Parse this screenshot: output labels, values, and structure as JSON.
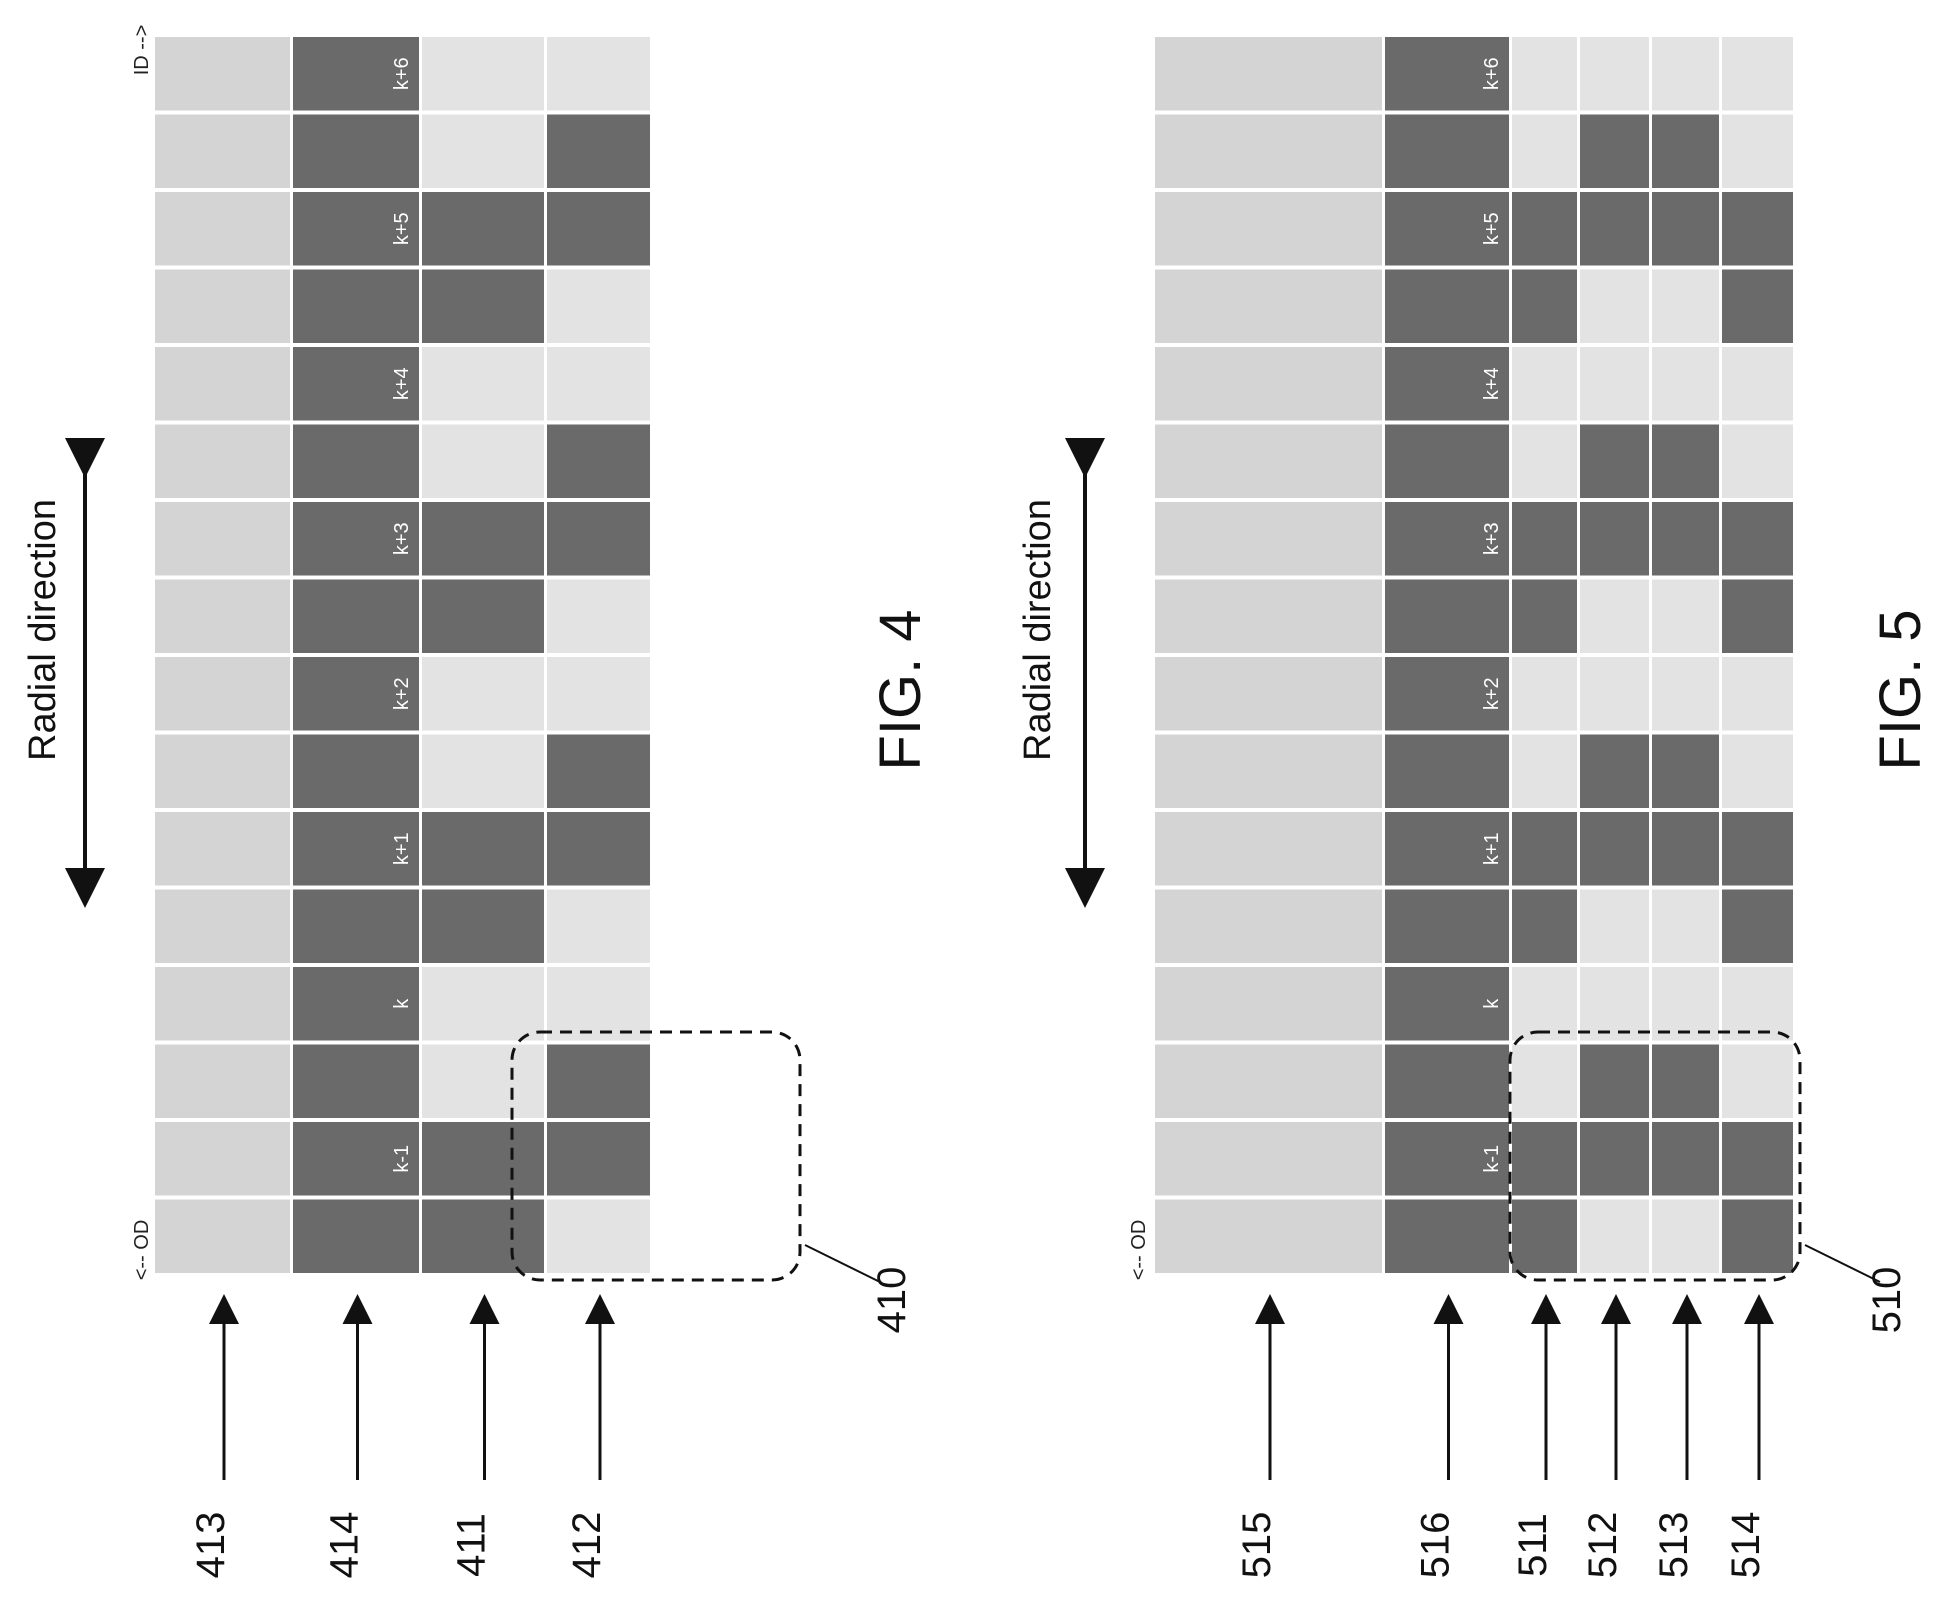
{
  "colors": {
    "dark": "#6a6a6a",
    "light": "#d4d4d4",
    "lighter": "#e3e3e3",
    "line": "#111111"
  },
  "figures": [
    {
      "id": "fig4",
      "caption": "FIG. 4",
      "direction_label": "Radial direction",
      "od_label": "<-- OD",
      "id_label": "ID -->",
      "group_label": "410",
      "rows": [
        {
          "label": "413",
          "pattern": [
            0,
            0,
            0,
            0,
            0,
            0,
            0,
            0,
            0,
            0,
            0,
            0,
            0,
            0,
            0,
            0
          ]
        },
        {
          "label": "414",
          "pattern": [
            1,
            1,
            1,
            1,
            1,
            1,
            1,
            1,
            1,
            1,
            1,
            1,
            1,
            1,
            1,
            1
          ]
        },
        {
          "label": "411",
          "pattern": [
            1,
            1,
            0,
            0,
            1,
            1,
            0,
            0,
            1,
            1,
            0,
            0,
            1,
            1,
            0,
            0
          ]
        },
        {
          "label": "412",
          "pattern": [
            0,
            1,
            1,
            0,
            0,
            1,
            1,
            0,
            0,
            1,
            1,
            0,
            0,
            1,
            1,
            0
          ]
        }
      ],
      "track_labels": [
        "k-1",
        "k",
        "k+1",
        "k+2",
        "k+3",
        "k+4",
        "k+5",
        "k+6"
      ]
    },
    {
      "id": "fig5",
      "caption": "FIG. 5",
      "direction_label": "Radial direction",
      "od_label": "<-- OD",
      "id_label": "",
      "group_label": "510",
      "rows": [
        {
          "label": "515",
          "pattern": [
            0,
            0,
            0,
            0,
            0,
            0,
            0,
            0,
            0,
            0,
            0,
            0,
            0,
            0,
            0,
            0
          ]
        },
        {
          "label": "516",
          "pattern": [
            1,
            1,
            1,
            1,
            1,
            1,
            1,
            1,
            1,
            1,
            1,
            1,
            1,
            1,
            1,
            1
          ]
        },
        {
          "label": "511",
          "pattern": [
            1,
            1,
            0,
            0,
            1,
            1,
            0,
            0,
            1,
            1,
            0,
            0,
            1,
            1,
            0,
            0
          ]
        },
        {
          "label": "512",
          "pattern": [
            0,
            1,
            1,
            0,
            0,
            1,
            1,
            0,
            0,
            1,
            1,
            0,
            0,
            1,
            1,
            0
          ]
        },
        {
          "label": "513",
          "pattern": [
            0,
            1,
            1,
            0,
            0,
            1,
            1,
            0,
            0,
            1,
            1,
            0,
            0,
            1,
            1,
            0
          ]
        },
        {
          "label": "514",
          "pattern": [
            1,
            1,
            0,
            0,
            1,
            1,
            0,
            0,
            1,
            1,
            0,
            0,
            1,
            1,
            0,
            0
          ]
        }
      ],
      "track_labels": [
        "k-1",
        "k",
        "k+1",
        "k+2",
        "k+3",
        "k+4",
        "k+5",
        "k+6"
      ]
    }
  ]
}
